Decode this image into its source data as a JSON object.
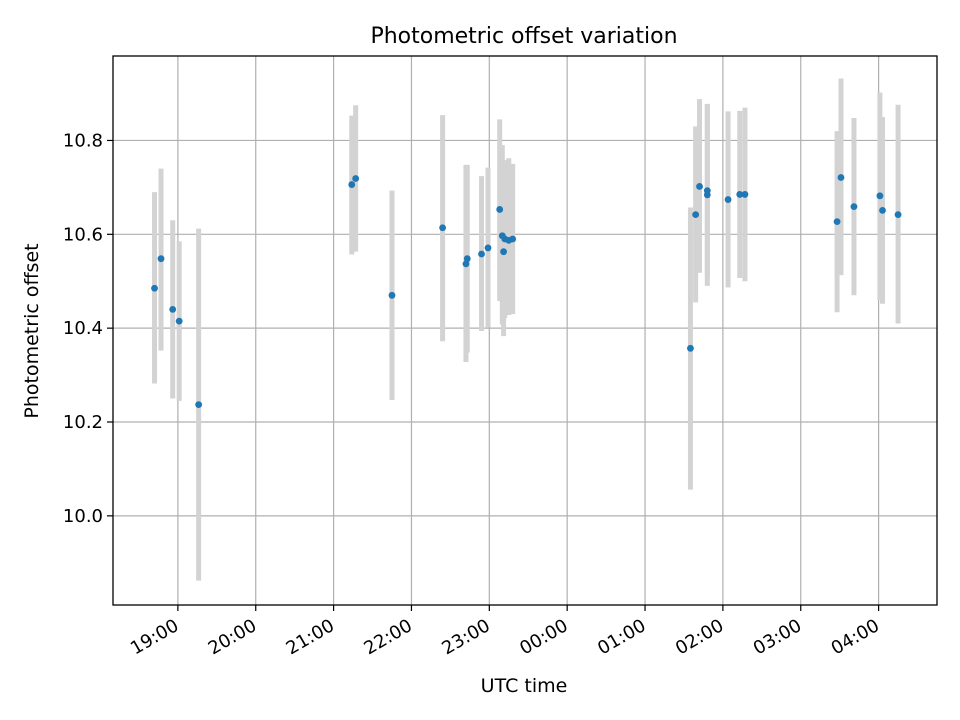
{
  "chart_data": {
    "type": "scatter",
    "title": "Photometric offset variation",
    "xlabel": "UTC time",
    "ylabel": "Photometric offset",
    "grid": true,
    "legend": "none",
    "x_is_time": true,
    "xlim": [
      "18:10",
      "04:45"
    ],
    "ylim": [
      9.81,
      10.98
    ],
    "x_tick_labels": [
      "19:00",
      "20:00",
      "21:00",
      "22:00",
      "23:00",
      "00:00",
      "01:00",
      "02:00",
      "03:00",
      "04:00"
    ],
    "y_tick_values": [
      10.0,
      10.2,
      10.4,
      10.6,
      10.8
    ],
    "y_tick_labels": [
      "10.0",
      "10.2",
      "10.4",
      "10.6",
      "10.8"
    ],
    "marker_color": "#1f77b4",
    "errorbar_color": "#d3d3d3",
    "points": [
      {
        "x": "18:42",
        "y": 10.485,
        "lo": 10.282,
        "hi": 10.69
      },
      {
        "x": "18:47",
        "y": 10.548,
        "lo": 10.352,
        "hi": 10.74
      },
      {
        "x": "18:56",
        "y": 10.44,
        "lo": 10.25,
        "hi": 10.63
      },
      {
        "x": "19:01",
        "y": 10.415,
        "lo": 10.245,
        "hi": 10.585
      },
      {
        "x": "19:16",
        "y": 10.237,
        "lo": 9.862,
        "hi": 10.612
      },
      {
        "x": "21:14",
        "y": 10.706,
        "lo": 10.557,
        "hi": 10.853
      },
      {
        "x": "21:17",
        "y": 10.719,
        "lo": 10.563,
        "hi": 10.875
      },
      {
        "x": "21:45",
        "y": 10.47,
        "lo": 10.247,
        "hi": 10.693
      },
      {
        "x": "22:24",
        "y": 10.614,
        "lo": 10.372,
        "hi": 10.854
      },
      {
        "x": "22:42",
        "y": 10.537,
        "lo": 10.328,
        "hi": 10.748
      },
      {
        "x": "22:43",
        "y": 10.548,
        "lo": 10.348,
        "hi": 10.748
      },
      {
        "x": "22:54",
        "y": 10.558,
        "lo": 10.394,
        "hi": 10.724
      },
      {
        "x": "22:59",
        "y": 10.571,
        "lo": 10.402,
        "hi": 10.742
      },
      {
        "x": "23:08",
        "y": 10.653,
        "lo": 10.458,
        "hi": 10.845
      },
      {
        "x": "23:10",
        "y": 10.597,
        "lo": 10.408,
        "hi": 10.79
      },
      {
        "x": "23:11",
        "y": 10.563,
        "lo": 10.383,
        "hi": 10.743
      },
      {
        "x": "23:12",
        "y": 10.59,
        "lo": 10.422,
        "hi": 10.758
      },
      {
        "x": "23:15",
        "y": 10.587,
        "lo": 10.428,
        "hi": 10.762
      },
      {
        "x": "23:18",
        "y": 10.59,
        "lo": 10.43,
        "hi": 10.75
      },
      {
        "x": "01:35",
        "y": 10.357,
        "lo": 10.056,
        "hi": 10.657
      },
      {
        "x": "01:39",
        "y": 10.642,
        "lo": 10.455,
        "hi": 10.83
      },
      {
        "x": "01:42",
        "y": 10.702,
        "lo": 10.518,
        "hi": 10.888
      },
      {
        "x": "01:48",
        "y": 10.684,
        "lo": 10.49,
        "hi": 10.878
      },
      {
        "x": "01:48",
        "y": 10.693,
        "lo": 10.51,
        "hi": 10.876
      },
      {
        "x": "02:04",
        "y": 10.674,
        "lo": 10.487,
        "hi": 10.862
      },
      {
        "x": "02:13",
        "y": 10.685,
        "lo": 10.507,
        "hi": 10.863
      },
      {
        "x": "02:17",
        "y": 10.685,
        "lo": 10.5,
        "hi": 10.87
      },
      {
        "x": "03:28",
        "y": 10.627,
        "lo": 10.434,
        "hi": 10.82
      },
      {
        "x": "03:31",
        "y": 10.721,
        "lo": 10.513,
        "hi": 10.932
      },
      {
        "x": "03:41",
        "y": 10.659,
        "lo": 10.47,
        "hi": 10.848
      },
      {
        "x": "04:01",
        "y": 10.682,
        "lo": 10.46,
        "hi": 10.902
      },
      {
        "x": "04:03",
        "y": 10.651,
        "lo": 10.452,
        "hi": 10.85
      },
      {
        "x": "04:15",
        "y": 10.642,
        "lo": 10.41,
        "hi": 10.876
      }
    ]
  }
}
